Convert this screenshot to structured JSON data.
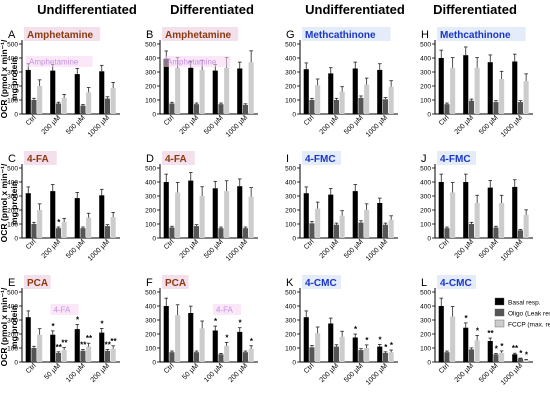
{
  "headers": [
    "Undifferentiated",
    "Differentiated",
    "Undifferentiated",
    "Differentiated"
  ],
  "y_axis_label": "OCR (pmol x min⁻¹/ mg protein",
  "legend": [
    {
      "name": "Basal resp.",
      "color": "#000000"
    },
    {
      "name": "Oligo (Leak resp.)",
      "color": "#555555"
    },
    {
      "name": "FCCP (max. resp.)",
      "color": "#cccccc"
    }
  ],
  "colors": {
    "basal": "#000000",
    "oligo": "#555555",
    "fccp": "#cccccc",
    "amphet_fill": "#f4e0ec",
    "amphet_text": "#8a3a0e",
    "cath_fill": "#e3ecf8",
    "cath_text": "#1a36c8"
  },
  "chart_data": [
    {
      "type": "bar",
      "letter": "A",
      "drug": "Amphetamine",
      "drug_class": "amphet",
      "categories": [
        "Ctrl",
        "200 µM",
        "500 µM",
        "1000 µM"
      ],
      "ylim": [
        0,
        500
      ],
      "series": [
        {
          "name": "Basal resp.",
          "values": [
            315,
            310,
            285,
            305
          ]
        },
        {
          "name": "Oligo (Leak resp.)",
          "values": [
            100,
            75,
            60,
            110
          ]
        },
        {
          "name": "FCCP (max. resp.)",
          "values": [
            200,
            115,
            155,
            185
          ]
        }
      ],
      "overlay": {
        "text": "Amphetamine",
        "after": 0
      }
    },
    {
      "type": "bar",
      "letter": "B",
      "drug": "Amphetamine",
      "drug_class": "amphet",
      "categories": [
        "Ctrl",
        "200 µM",
        "500 µM",
        "1000 µM"
      ],
      "ylim": [
        0,
        500
      ],
      "series": [
        {
          "name": "Basal resp.",
          "values": [
            395,
            330,
            310,
            325
          ]
        },
        {
          "name": "Oligo (Leak resp.)",
          "values": [
            75,
            70,
            70,
            65
          ]
        },
        {
          "name": "FCCP (max. resp.)",
          "values": [
            330,
            315,
            330,
            370
          ]
        }
      ],
      "overlay": {
        "text": "Amphetamine",
        "after": 0
      }
    },
    {
      "type": "bar",
      "letter": "G",
      "drug": "Methcathinone",
      "drug_class": "cath",
      "categories": [
        "Ctrl",
        "200 µM",
        "500 µM",
        "1000 µM"
      ],
      "ylim": [
        0,
        500
      ],
      "series": [
        {
          "name": "Basal resp.",
          "values": [
            320,
            290,
            325,
            315
          ]
        },
        {
          "name": "Oligo (Leak resp.)",
          "values": [
            100,
            100,
            115,
            105
          ]
        },
        {
          "name": "FCCP (max. resp.)",
          "values": [
            205,
            160,
            210,
            195
          ]
        }
      ]
    },
    {
      "type": "bar",
      "letter": "H",
      "drug": "Methcathinone",
      "drug_class": "cath",
      "categories": [
        "Ctrl",
        "200 µM",
        "500 µM",
        "1000 µM"
      ],
      "ylim": [
        0,
        500
      ],
      "series": [
        {
          "name": "Basal resp.",
          "values": [
            400,
            420,
            370,
            375
          ]
        },
        {
          "name": "Oligo (Leak resp.)",
          "values": [
            70,
            95,
            85,
            85
          ]
        },
        {
          "name": "FCCP (max. resp.)",
          "values": [
            330,
            330,
            250,
            235
          ]
        }
      ]
    },
    {
      "type": "bar",
      "letter": "C",
      "drug": "4-FA",
      "drug_class": "amphet",
      "categories": [
        "Ctrl",
        "200 µM",
        "500 µM",
        "1000 µM"
      ],
      "ylim": [
        0,
        500
      ],
      "series": [
        {
          "name": "Basal resp.",
          "values": [
            320,
            335,
            285,
            305
          ]
        },
        {
          "name": "Oligo (Leak resp.)",
          "values": [
            100,
            70,
            70,
            85
          ]
        },
        {
          "name": "FCCP (max. resp.)",
          "values": [
            200,
            115,
            145,
            150
          ]
        }
      ],
      "stars": [
        {
          "g": 1,
          "s": 1,
          "t": "*"
        }
      ]
    },
    {
      "type": "bar",
      "letter": "D",
      "drug": "4-FA",
      "drug_class": "amphet",
      "categories": [
        "Ctrl",
        "200 µM",
        "500 µM",
        "1000 µM"
      ],
      "ylim": [
        0,
        500
      ],
      "series": [
        {
          "name": "Basal resp.",
          "values": [
            400,
            410,
            355,
            370
          ]
        },
        {
          "name": "Oligo (Leak resp.)",
          "values": [
            75,
            85,
            70,
            70
          ]
        },
        {
          "name": "FCCP (max. resp.)",
          "values": [
            325,
            300,
            335,
            295
          ]
        }
      ]
    },
    {
      "type": "bar",
      "letter": "I",
      "drug": "4-FMC",
      "drug_class": "cath",
      "categories": [
        "Ctrl",
        "200 µM",
        "500 µM",
        "1000 µM"
      ],
      "ylim": [
        0,
        500
      ],
      "series": [
        {
          "name": "Basal resp.",
          "values": [
            320,
            310,
            335,
            250
          ]
        },
        {
          "name": "Oligo (Leak resp.)",
          "values": [
            105,
            95,
            110,
            95
          ]
        },
        {
          "name": "FCCP (max. resp.)",
          "values": [
            210,
            160,
            200,
            130
          ]
        }
      ]
    },
    {
      "type": "bar",
      "letter": "J",
      "drug": "4-FMC",
      "drug_class": "cath",
      "categories": [
        "Ctrl",
        "200 µM",
        "500 µM",
        "1000 µM"
      ],
      "ylim": [
        0,
        500
      ],
      "series": [
        {
          "name": "Basal resp.",
          "values": [
            400,
            400,
            360,
            365
          ]
        },
        {
          "name": "Oligo (Leak resp.)",
          "values": [
            70,
            100,
            75,
            55
          ]
        },
        {
          "name": "FCCP (max. resp.)",
          "values": [
            325,
            250,
            250,
            165
          ]
        }
      ]
    },
    {
      "type": "bar",
      "letter": "E",
      "drug": "PCA",
      "drug_class": "amphet",
      "categories": [
        "Ctrl",
        "50 µM",
        "100 µM",
        "200 µM"
      ],
      "ylim": [
        0,
        500
      ],
      "series": [
        {
          "name": "Basal resp.",
          "values": [
            320,
            195,
            235,
            210
          ]
        },
        {
          "name": "Oligo (Leak resp.)",
          "values": [
            100,
            65,
            80,
            80
          ]
        },
        {
          "name": "FCCP (max. resp.)",
          "values": [
            195,
            85,
            110,
            95
          ]
        }
      ],
      "stars": [
        {
          "g": 1,
          "s": 0,
          "t": "*"
        },
        {
          "g": 1,
          "s": 1,
          "t": "**"
        },
        {
          "g": 1,
          "s": 2,
          "t": "**"
        },
        {
          "g": 2,
          "s": 0,
          "t": "*"
        },
        {
          "g": 2,
          "s": 1,
          "t": "**"
        },
        {
          "g": 2,
          "s": 2,
          "t": "**"
        },
        {
          "g": 3,
          "s": 0,
          "t": "*"
        },
        {
          "g": 3,
          "s": 1,
          "t": "**"
        },
        {
          "g": 3,
          "s": 2,
          "t": "**"
        }
      ],
      "overlay": {
        "text": "4-FA",
        "after": 1
      }
    },
    {
      "type": "bar",
      "letter": "F",
      "drug": "PCA",
      "drug_class": "amphet",
      "categories": [
        "Ctrl",
        "50 µM",
        "100 µM",
        "200 µM"
      ],
      "ylim": [
        0,
        500
      ],
      "series": [
        {
          "name": "Basal resp.",
          "values": [
            400,
            350,
            225,
            215
          ]
        },
        {
          "name": "Oligo (Leak resp.)",
          "values": [
            70,
            70,
            55,
            70
          ]
        },
        {
          "name": "FCCP (max. resp.)",
          "values": [
            335,
            240,
            115,
            95
          ]
        }
      ],
      "stars": [
        {
          "g": 2,
          "s": 0,
          "t": "*"
        },
        {
          "g": 2,
          "s": 2,
          "t": "*"
        },
        {
          "g": 3,
          "s": 0,
          "t": "*"
        },
        {
          "g": 3,
          "s": 2,
          "t": "*"
        }
      ],
      "overlay": {
        "text": "4-FA",
        "after": 2
      }
    },
    {
      "type": "bar",
      "letter": "K",
      "drug": "4-CMC",
      "drug_class": "cath",
      "categories": [
        "Ctrl",
        "200 µM",
        "500 µM",
        "1000 µM"
      ],
      "ylim": [
        0,
        500
      ],
      "series": [
        {
          "name": "Basal resp.",
          "values": [
            320,
            275,
            175,
            110
          ]
        },
        {
          "name": "Oligo (Leak resp.)",
          "values": [
            105,
            110,
            85,
            65
          ]
        },
        {
          "name": "FCCP (max. resp.)",
          "values": [
            205,
            180,
            100,
            70
          ]
        }
      ],
      "stars": [
        {
          "g": 2,
          "s": 0,
          "t": "*"
        },
        {
          "g": 2,
          "s": 2,
          "t": "*"
        },
        {
          "g": 3,
          "s": 0,
          "t": "*"
        },
        {
          "g": 3,
          "s": 1,
          "t": "*"
        },
        {
          "g": 3,
          "s": 2,
          "t": "*"
        }
      ]
    },
    {
      "type": "bar",
      "letter": "L",
      "drug": "4-CMC",
      "drug_class": "cath",
      "categories": [
        "Ctrl",
        "200 µM",
        "500 µM",
        "1000 µM"
      ],
      "ylim": [
        0,
        500
      ],
      "series": [
        {
          "name": "Basal resp.",
          "values": [
            400,
            245,
            150,
            55
          ]
        },
        {
          "name": "Oligo (Leak resp.)",
          "values": [
            70,
            90,
            55,
            25
          ]
        },
        {
          "name": "FCCP (max. resp.)",
          "values": [
            325,
            155,
            65,
            15
          ]
        }
      ],
      "stars": [
        {
          "g": 1,
          "s": 0,
          "t": "*"
        },
        {
          "g": 1,
          "s": 2,
          "t": "*"
        },
        {
          "g": 2,
          "s": 0,
          "t": "**"
        },
        {
          "g": 2,
          "s": 1,
          "t": "*"
        },
        {
          "g": 2,
          "s": 2,
          "t": "*"
        },
        {
          "g": 3,
          "s": 0,
          "t": "**"
        },
        {
          "g": 3,
          "s": 1,
          "t": "*"
        },
        {
          "g": 3,
          "s": 2,
          "t": "*"
        }
      ],
      "legend": true
    }
  ]
}
